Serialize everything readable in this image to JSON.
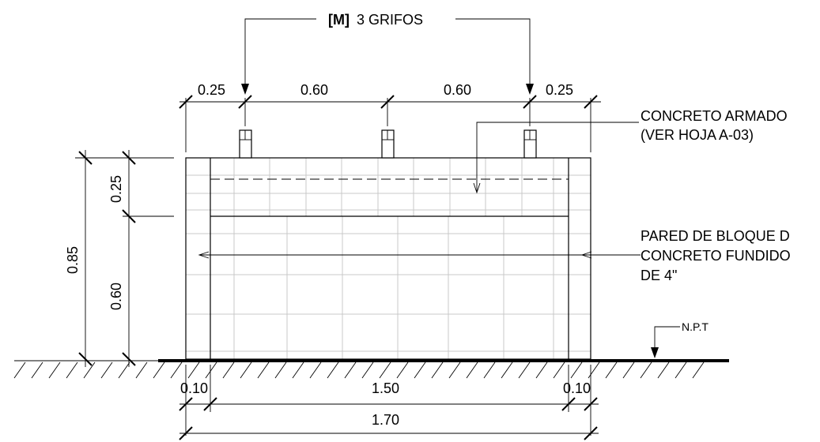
{
  "header": {
    "bracket": "[M]",
    "text": "3 GRIFOS"
  },
  "dims": {
    "top": [
      "0.25",
      "0.60",
      "0.60",
      "0.25"
    ],
    "left_total": "0.85",
    "left_upper": "0.25",
    "left_lower": "0.60",
    "bottom": [
      "0.10",
      "1.50",
      "0.10"
    ],
    "overall": "1.70"
  },
  "notes": {
    "concrete": [
      "CONCRETO ARMADO",
      "(VER HOJA A-03)"
    ],
    "wall": [
      "PARED DE BLOQUE D",
      "CONCRETO FUNDIDO",
      "DE 4\""
    ],
    "level": "N.P.T"
  }
}
